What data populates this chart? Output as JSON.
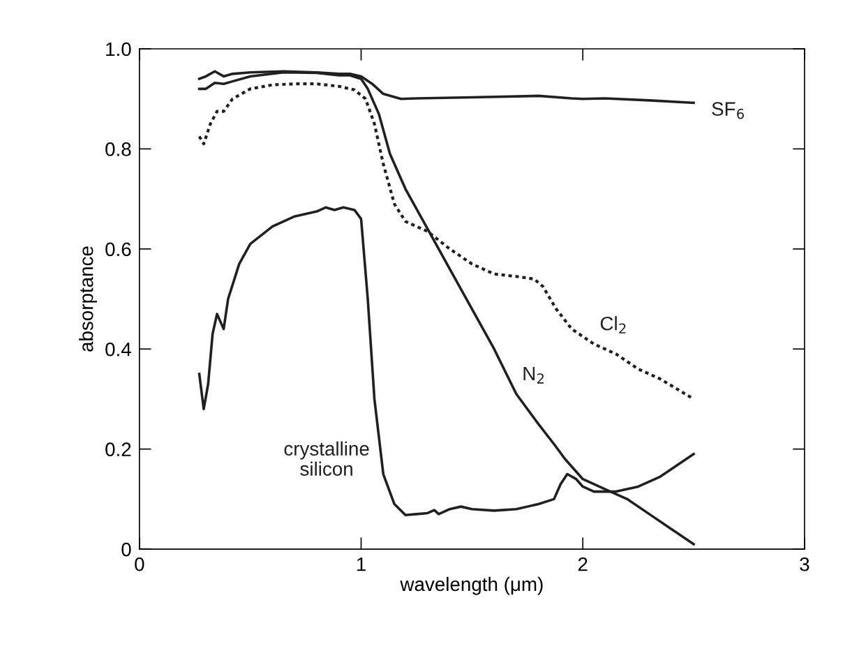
{
  "chart_data": {
    "type": "line",
    "xlabel": "wavelength (μm)",
    "ylabel": "absorptance",
    "xlim": [
      0,
      3
    ],
    "xticks": [
      0,
      1,
      2,
      3
    ],
    "ylim": [
      0,
      1.0
    ],
    "yticks": [
      0,
      {
        "value": 0.2,
        "label": "0.2"
      },
      {
        "value": 0.4,
        "label": "0.4"
      },
      {
        "value": 0.6,
        "label": "0.6"
      },
      {
        "value": 0.8,
        "label": "0.8"
      },
      {
        "value": 1.0,
        "label": "1.0"
      }
    ],
    "grid": false,
    "legend": false,
    "marker": "none",
    "series": [
      {
        "name": "SF$_{6}$",
        "color": "#231f20",
        "line_style": "solid",
        "x": [
          0.27,
          0.3,
          0.34,
          0.38,
          0.42,
          0.5,
          0.65,
          0.8,
          0.9,
          0.95,
          1.0,
          1.05,
          1.1,
          1.18,
          1.25,
          1.5,
          1.8,
          1.95,
          2.0,
          2.1,
          2.3,
          2.5
        ],
        "values": [
          0.94,
          0.945,
          0.955,
          0.945,
          0.95,
          0.953,
          0.955,
          0.953,
          0.95,
          0.95,
          0.945,
          0.93,
          0.91,
          0.9,
          0.901,
          0.903,
          0.906,
          0.901,
          0.9,
          0.901,
          0.897,
          0.892
        ]
      },
      {
        "name": "N$_{2}$",
        "color": "#231f20",
        "line_style": "solid",
        "x": [
          0.27,
          0.3,
          0.34,
          0.38,
          0.42,
          0.5,
          0.65,
          0.8,
          0.9,
          0.95,
          1.0,
          1.03,
          1.08,
          1.13,
          1.2,
          1.3,
          1.4,
          1.5,
          1.6,
          1.7,
          1.8,
          1.87,
          1.92,
          2.0,
          2.1,
          2.2,
          2.3,
          2.4,
          2.5
        ],
        "values": [
          0.92,
          0.92,
          0.932,
          0.93,
          0.935,
          0.945,
          0.953,
          0.952,
          0.947,
          0.947,
          0.94,
          0.92,
          0.87,
          0.79,
          0.72,
          0.64,
          0.56,
          0.48,
          0.4,
          0.31,
          0.25,
          0.21,
          0.18,
          0.14,
          0.12,
          0.1,
          0.07,
          0.04,
          0.01
        ]
      },
      {
        "name": "Cl$_{2}$",
        "color": "#231f20",
        "line_style": "dotted",
        "x": [
          0.27,
          0.29,
          0.32,
          0.35,
          0.38,
          0.42,
          0.5,
          0.6,
          0.7,
          0.8,
          0.9,
          0.97,
          1.02,
          1.06,
          1.1,
          1.15,
          1.2,
          1.3,
          1.4,
          1.5,
          1.6,
          1.7,
          1.78,
          1.82,
          1.88,
          1.95,
          2.05,
          2.15,
          2.25,
          2.35,
          2.5
        ],
        "values": [
          0.825,
          0.81,
          0.85,
          0.875,
          0.875,
          0.9,
          0.92,
          0.928,
          0.93,
          0.93,
          0.925,
          0.918,
          0.9,
          0.85,
          0.77,
          0.69,
          0.655,
          0.635,
          0.6,
          0.57,
          0.55,
          0.545,
          0.54,
          0.525,
          0.48,
          0.44,
          0.41,
          0.39,
          0.36,
          0.34,
          0.3
        ]
      },
      {
        "name": "crystalline\nsilicon",
        "color": "#231f20",
        "line_style": "solid",
        "x": [
          0.27,
          0.29,
          0.31,
          0.33,
          0.35,
          0.37,
          0.38,
          0.4,
          0.45,
          0.5,
          0.6,
          0.7,
          0.8,
          0.84,
          0.88,
          0.92,
          0.97,
          1.0,
          1.03,
          1.06,
          1.1,
          1.15,
          1.2,
          1.25,
          1.3,
          1.33,
          1.35,
          1.4,
          1.45,
          1.5,
          1.6,
          1.7,
          1.8,
          1.87,
          1.9,
          1.93,
          1.97,
          2.0,
          2.05,
          2.15,
          2.25,
          2.35,
          2.5
        ],
        "values": [
          0.35,
          0.28,
          0.33,
          0.43,
          0.47,
          0.45,
          0.44,
          0.5,
          0.57,
          0.61,
          0.645,
          0.665,
          0.675,
          0.683,
          0.678,
          0.683,
          0.678,
          0.66,
          0.5,
          0.3,
          0.15,
          0.09,
          0.068,
          0.07,
          0.072,
          0.078,
          0.07,
          0.08,
          0.085,
          0.08,
          0.077,
          0.08,
          0.09,
          0.1,
          0.13,
          0.15,
          0.14,
          0.125,
          0.115,
          0.115,
          0.125,
          0.145,
          0.19
        ]
      }
    ]
  }
}
